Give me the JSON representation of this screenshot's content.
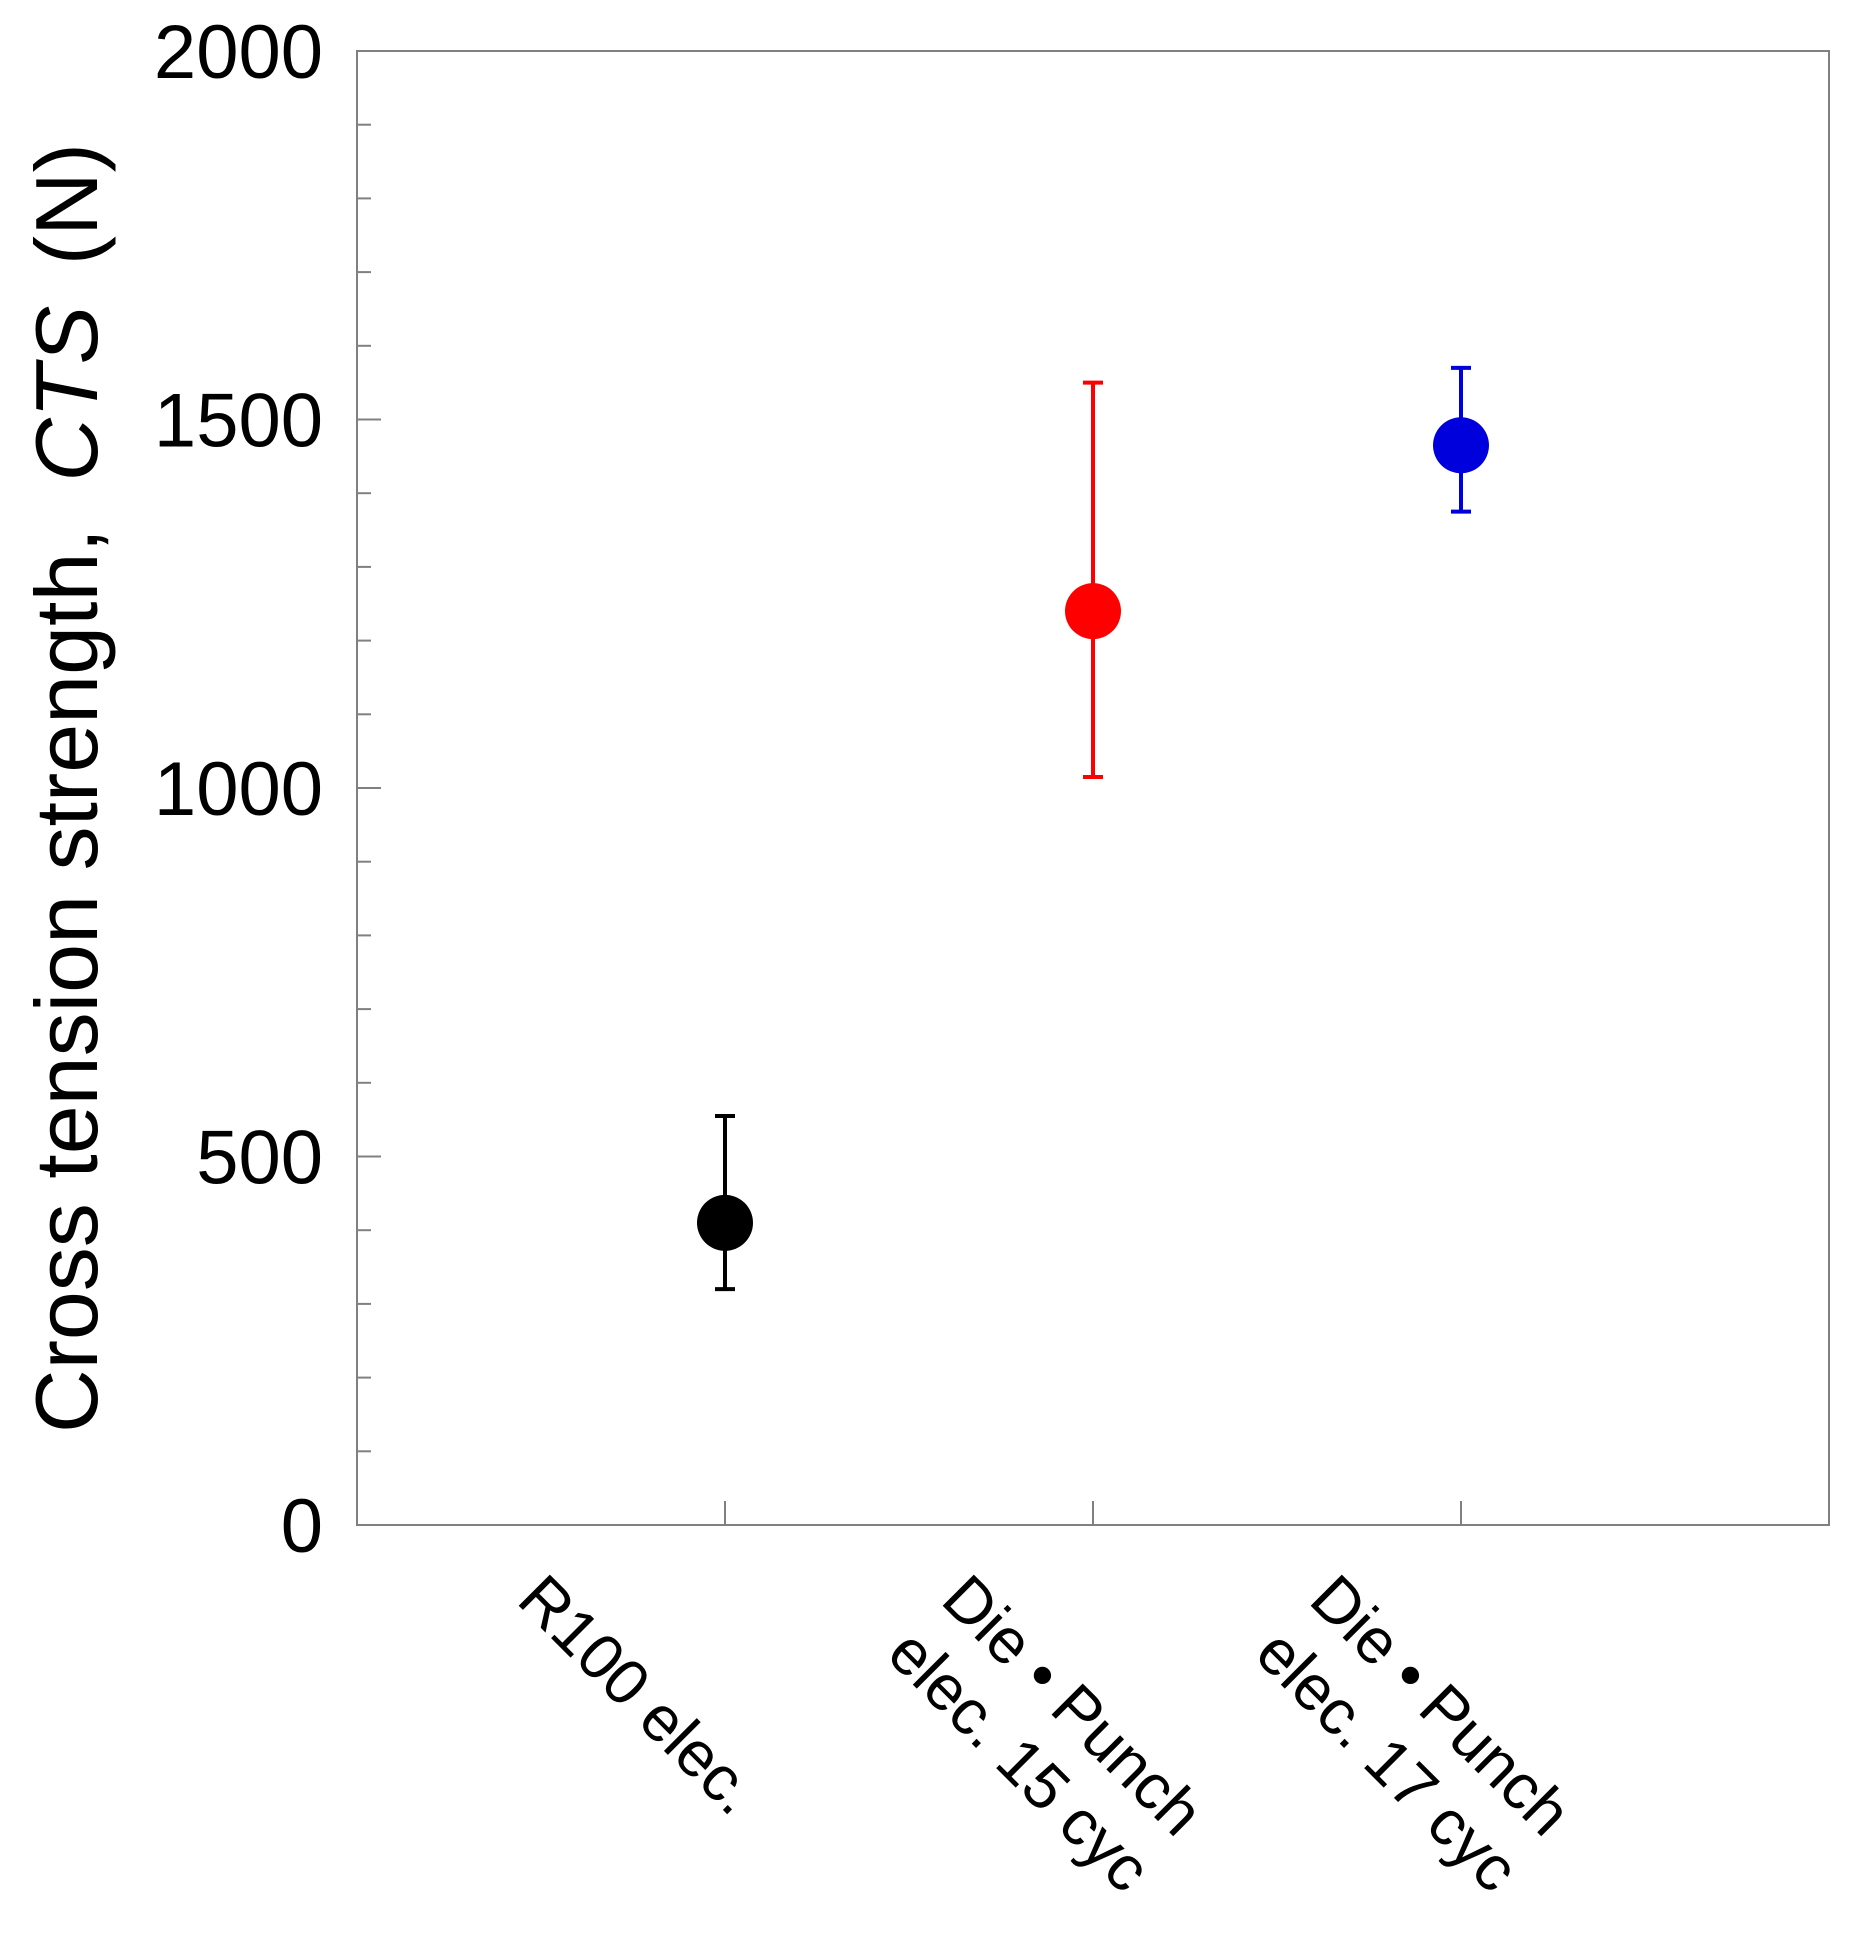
{
  "chart_data": {
    "type": "scatter",
    "title": "",
    "xlabel": "",
    "ylabel": {
      "prefix": "Cross tension strength,",
      "symbol": "CTS",
      "unit": "(N)"
    },
    "ylim": [
      0,
      2000
    ],
    "yticks_major": [
      0,
      500,
      1000,
      1500,
      2000
    ],
    "yticks_minor_step": 100,
    "grid": false,
    "legend": "none",
    "categories": [
      [
        "R100 elec."
      ],
      [
        "Die • Punch",
        "elec. 15 cyc"
      ],
      [
        "Die • Punch",
        "elec. 17 cyc"
      ]
    ],
    "points": [
      {
        "value": 410,
        "err_low": 320,
        "err_high": 555,
        "color": "#000000"
      },
      {
        "value": 1240,
        "err_low": 1015,
        "err_high": 1550,
        "color": "#ff0000"
      },
      {
        "value": 1465,
        "err_low": 1375,
        "err_high": 1570,
        "color": "#0000dd"
      }
    ]
  }
}
